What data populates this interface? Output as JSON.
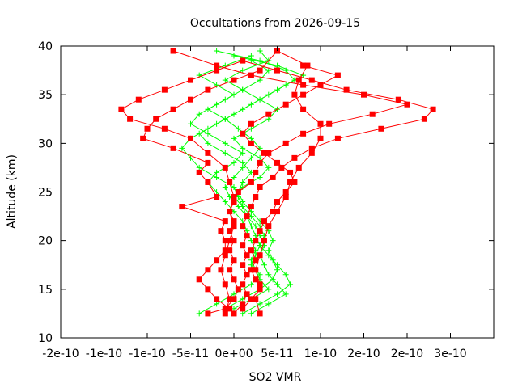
{
  "chart_data": {
    "type": "line",
    "title": "Occultations from 2026-09-15",
    "xlabel": "SO2 VMR",
    "ylabel": "Altitude (km)",
    "xlim": [
      -2e-10,
      3e-10
    ],
    "ylim": [
      10,
      40
    ],
    "xticks": [
      -2e-10,
      -1.5e-10,
      -1e-10,
      -5e-11,
      0,
      5e-11,
      1e-10,
      1.5e-10,
      2e-10,
      2.5e-10,
      3e-10
    ],
    "xtick_labels": [
      "-2e-10",
      "-1e-10",
      "-1e-10",
      "-5e-11",
      "0e+00",
      "5e-11",
      "1e-10",
      "2e-10",
      "2e-10",
      "3e-10",
      ""
    ],
    "yticks": [
      10,
      15,
      20,
      25,
      30,
      35,
      40
    ],
    "ytick_labels": [
      "10",
      "15",
      "20",
      "25",
      "30",
      "35",
      "40"
    ],
    "grid": false,
    "legend": "none",
    "colors": {
      "red_series": "#ff0000",
      "green_series": "#00ff00"
    },
    "series_red": [
      [
        [
          -3e-11,
          12.5
        ],
        [
          -1e-11,
          13
        ],
        [
          0,
          14
        ],
        [
          5e-12,
          15
        ],
        [
          0,
          16
        ],
        [
          -5e-12,
          17
        ],
        [
          0,
          18
        ],
        [
          -5e-12,
          19
        ],
        [
          0,
          20
        ],
        [
          -5e-12,
          21
        ],
        [
          0,
          22
        ],
        [
          -5e-12,
          23
        ],
        [
          0,
          24
        ],
        [
          5e-12,
          25
        ],
        [
          2e-11,
          26
        ],
        [
          2.5e-11,
          27
        ],
        [
          3e-11,
          28
        ],
        [
          4e-11,
          29
        ],
        [
          6e-11,
          30
        ],
        [
          8e-11,
          31
        ],
        [
          1.1e-10,
          32
        ],
        [
          1.6e-10,
          33
        ],
        [
          2e-10,
          34
        ],
        [
          1.5e-10,
          35
        ],
        [
          8e-11,
          36
        ],
        [
          2e-11,
          37
        ],
        [
          -2e-11,
          38
        ],
        [
          -7e-11,
          39.5
        ]
      ],
      [
        [
          0,
          12.5
        ],
        [
          1e-11,
          13.5
        ],
        [
          1.5e-11,
          14.5
        ],
        [
          1e-11,
          15.5
        ],
        [
          1.5e-11,
          16.5
        ],
        [
          1e-11,
          17.5
        ],
        [
          1.5e-11,
          18.5
        ],
        [
          1e-11,
          19.5
        ],
        [
          1.5e-11,
          20.5
        ],
        [
          1e-11,
          21.5
        ],
        [
          1.5e-11,
          22.5
        ],
        [
          2e-11,
          23.5
        ],
        [
          2.5e-11,
          24.5
        ],
        [
          3e-11,
          25.5
        ],
        [
          4.5e-11,
          26.5
        ],
        [
          5.5e-11,
          27.5
        ],
        [
          7e-11,
          28.5
        ],
        [
          9e-11,
          29.5
        ],
        [
          1.2e-10,
          30.5
        ],
        [
          1.7e-10,
          31.5
        ],
        [
          2.2e-10,
          32.5
        ],
        [
          2.3e-10,
          33.5
        ],
        [
          1.9e-10,
          34.5
        ],
        [
          1.3e-10,
          35.5
        ],
        [
          9e-11,
          36.5
        ],
        [
          5e-11,
          37.5
        ],
        [
          1e-11,
          38.5
        ]
      ],
      [
        [
          -5e-12,
          13
        ],
        [
          -2e-11,
          14
        ],
        [
          -3e-11,
          15
        ],
        [
          -4e-11,
          16
        ],
        [
          -3e-11,
          17
        ],
        [
          -2e-11,
          18
        ],
        [
          -1e-11,
          19
        ],
        [
          -1e-11,
          20
        ],
        [
          -1.5e-11,
          21
        ],
        [
          -1e-11,
          22
        ],
        [
          -6e-11,
          23.5
        ],
        [
          -2e-11,
          24.5
        ],
        [
          -3e-11,
          26
        ],
        [
          -4e-11,
          27
        ],
        [
          -3e-11,
          28
        ],
        [
          -7e-11,
          29.5
        ],
        [
          -1.05e-10,
          30.5
        ],
        [
          -1e-10,
          31.5
        ],
        [
          -9e-11,
          32.5
        ],
        [
          -7e-11,
          33.5
        ],
        [
          -5e-11,
          34.5
        ],
        [
          -3e-11,
          35.5
        ],
        [
          0,
          36.5
        ],
        [
          3e-11,
          37.5
        ],
        [
          5e-11,
          39.5
        ]
      ],
      [
        [
          -1e-11,
          12.5
        ],
        [
          -5e-12,
          14
        ],
        [
          -1e-11,
          15.5
        ],
        [
          -1.5e-11,
          17
        ],
        [
          -1e-11,
          18.5
        ],
        [
          -5e-12,
          20
        ],
        [
          0,
          21.5
        ],
        [
          -5e-12,
          23
        ],
        [
          0,
          24.5
        ],
        [
          -5e-12,
          26
        ],
        [
          -1e-11,
          27.5
        ],
        [
          -3e-11,
          29
        ],
        [
          -5e-11,
          30.5
        ],
        [
          -8e-11,
          31.5
        ],
        [
          -1.2e-10,
          32.5
        ],
        [
          -1.3e-10,
          33.5
        ],
        [
          -1.1e-10,
          34.5
        ],
        [
          -8e-11,
          35.5
        ],
        [
          -5e-11,
          36.5
        ],
        [
          -2e-11,
          37.5
        ],
        [
          1e-11,
          38.5
        ]
      ],
      [
        [
          1e-11,
          13
        ],
        [
          2e-11,
          14
        ],
        [
          3e-11,
          15
        ],
        [
          2.5e-11,
          16
        ],
        [
          2e-11,
          17
        ],
        [
          2.5e-11,
          18
        ],
        [
          2e-11,
          19
        ],
        [
          2.5e-11,
          20
        ],
        [
          3e-11,
          21
        ],
        [
          3.5e-11,
          22
        ],
        [
          4.5e-11,
          23
        ],
        [
          5e-11,
          24
        ],
        [
          6e-11,
          25
        ],
        [
          7e-11,
          26
        ],
        [
          6.5e-11,
          27
        ],
        [
          5e-11,
          28
        ],
        [
          3.5e-11,
          29
        ],
        [
          2e-11,
          30
        ],
        [
          1e-11,
          31
        ],
        [
          2e-11,
          32
        ],
        [
          4e-11,
          33
        ],
        [
          6e-11,
          34
        ],
        [
          8e-11,
          35
        ],
        [
          1e-10,
          36
        ],
        [
          1.2e-10,
          37
        ],
        [
          8e-11,
          38
        ]
      ],
      [
        [
          3e-11,
          12.5
        ],
        [
          2.5e-11,
          14
        ],
        [
          3e-11,
          15.5
        ],
        [
          2.5e-11,
          17
        ],
        [
          3e-11,
          18.5
        ],
        [
          3.5e-11,
          20
        ],
        [
          4e-11,
          21.5
        ],
        [
          5e-11,
          23
        ],
        [
          6e-11,
          24.5
        ],
        [
          6.5e-11,
          26
        ],
        [
          7.5e-11,
          27.5
        ],
        [
          9e-11,
          29
        ],
        [
          1e-10,
          30.5
        ],
        [
          1e-10,
          32
        ],
        [
          8e-11,
          33.5
        ],
        [
          7e-11,
          35
        ],
        [
          7.5e-11,
          36.5
        ],
        [
          8.5e-11,
          38
        ],
        [
          5e-11,
          39.5
        ]
      ]
    ],
    "series_green": [
      [
        [
          -4e-11,
          12.5
        ],
        [
          -2e-11,
          13.5
        ],
        [
          0,
          14.5
        ],
        [
          2e-11,
          15.5
        ],
        [
          3e-11,
          16.5
        ],
        [
          2e-11,
          17.5
        ],
        [
          2.5e-11,
          18.5
        ],
        [
          3e-11,
          19.5
        ],
        [
          3.5e-11,
          20.5
        ],
        [
          3e-11,
          21.5
        ],
        [
          2e-11,
          22.5
        ],
        [
          1e-11,
          23.5
        ],
        [
          5e-12,
          24.5
        ],
        [
          0,
          25.5
        ],
        [
          -2e-11,
          26.5
        ],
        [
          -4e-11,
          27.5
        ],
        [
          -5e-11,
          28.5
        ],
        [
          -6e-11,
          29.5
        ],
        [
          -5e-11,
          30.5
        ],
        [
          -3e-11,
          31.5
        ],
        [
          -1e-11,
          32.5
        ],
        [
          1e-11,
          33.5
        ],
        [
          3e-11,
          34.5
        ],
        [
          5e-11,
          35.5
        ],
        [
          7e-11,
          36.5
        ],
        [
          6e-11,
          37.5
        ],
        [
          3e-11,
          38.5
        ],
        [
          -2e-11,
          39.5
        ]
      ],
      [
        [
          -1e-11,
          13
        ],
        [
          1e-11,
          14
        ],
        [
          3e-11,
          15
        ],
        [
          4.5e-11,
          16
        ],
        [
          5e-11,
          17
        ],
        [
          4.5e-11,
          18
        ],
        [
          4e-11,
          19
        ],
        [
          4.5e-11,
          20
        ],
        [
          4e-11,
          21
        ],
        [
          3e-11,
          22
        ],
        [
          2e-11,
          23
        ],
        [
          1e-11,
          24
        ],
        [
          5e-12,
          25
        ],
        [
          1e-11,
          26
        ],
        [
          2e-11,
          27
        ],
        [
          1e-11,
          28
        ],
        [
          -1e-11,
          29
        ],
        [
          -3e-11,
          30
        ],
        [
          -4e-11,
          31
        ],
        [
          -2e-11,
          32
        ],
        [
          0,
          33
        ],
        [
          2e-11,
          34
        ],
        [
          4e-11,
          35
        ],
        [
          6e-11,
          36
        ],
        [
          8e-11,
          37
        ],
        [
          5e-11,
          38
        ],
        [
          0,
          39
        ]
      ],
      [
        [
          2e-11,
          12.5
        ],
        [
          4e-11,
          13.5
        ],
        [
          6e-11,
          14.5
        ],
        [
          5e-11,
          15.5
        ],
        [
          4e-11,
          16.5
        ],
        [
          3.5e-11,
          17.5
        ],
        [
          3e-11,
          18.5
        ],
        [
          3.5e-11,
          19.5
        ],
        [
          3e-11,
          20.5
        ],
        [
          2.5e-11,
          21.5
        ],
        [
          1.5e-11,
          22.5
        ],
        [
          5e-12,
          23.5
        ],
        [
          -5e-12,
          24.5
        ],
        [
          -1e-11,
          25.5
        ],
        [
          0,
          26.5
        ],
        [
          1e-11,
          27.5
        ],
        [
          2e-11,
          28.5
        ],
        [
          3e-11,
          29.5
        ],
        [
          2e-11,
          30.5
        ],
        [
          5e-12,
          31.5
        ],
        [
          -1e-11,
          32.5
        ],
        [
          -3e-11,
          33.5
        ],
        [
          -1e-11,
          34.5
        ],
        [
          1e-11,
          35.5
        ],
        [
          3e-11,
          36.5
        ],
        [
          4e-11,
          37.5
        ],
        [
          2e-11,
          38.5
        ]
      ],
      [
        [
          0,
          13
        ],
        [
          2e-11,
          14
        ],
        [
          4e-11,
          15
        ],
        [
          3e-11,
          16
        ],
        [
          2.5e-11,
          17
        ],
        [
          2e-11,
          18
        ],
        [
          2.5e-11,
          19
        ],
        [
          2e-11,
          20
        ],
        [
          1.5e-11,
          21
        ],
        [
          1e-11,
          22
        ],
        [
          0,
          23
        ],
        [
          -1e-11,
          24
        ],
        [
          -2e-11,
          25
        ],
        [
          -3e-11,
          26
        ],
        [
          -2e-11,
          27
        ],
        [
          0,
          28
        ],
        [
          1e-11,
          29
        ],
        [
          -1e-11,
          30
        ],
        [
          -3e-11,
          31
        ],
        [
          -5e-11,
          32
        ],
        [
          -4e-11,
          33
        ],
        [
          -2e-11,
          34
        ],
        [
          0,
          35
        ],
        [
          -2e-11,
          36
        ],
        [
          -4e-11,
          37
        ],
        [
          -1e-11,
          38
        ],
        [
          2e-11,
          39
        ]
      ],
      [
        [
          1e-11,
          12.5
        ],
        [
          3e-11,
          13.5
        ],
        [
          5e-11,
          14.5
        ],
        [
          6.5e-11,
          15.5
        ],
        [
          6e-11,
          16.5
        ],
        [
          5e-11,
          17.5
        ],
        [
          4e-11,
          18.5
        ],
        [
          3e-11,
          19.5
        ],
        [
          2.5e-11,
          20.5
        ],
        [
          2e-11,
          21.5
        ],
        [
          1.5e-11,
          22.5
        ],
        [
          1e-11,
          23.5
        ],
        [
          0,
          24.5
        ],
        [
          1e-11,
          25.5
        ],
        [
          3e-11,
          26.5
        ],
        [
          4e-11,
          27.5
        ],
        [
          3e-11,
          28.5
        ],
        [
          1e-11,
          29.5
        ],
        [
          0,
          30.5
        ],
        [
          2e-11,
          31.5
        ],
        [
          4e-11,
          32.5
        ],
        [
          5e-11,
          33.5
        ],
        [
          3e-11,
          34.5
        ],
        [
          1e-11,
          35.5
        ],
        [
          -1e-11,
          36.5
        ],
        [
          1e-11,
          37.5
        ],
        [
          4e-11,
          38.5
        ],
        [
          3e-11,
          39.5
        ]
      ]
    ]
  }
}
